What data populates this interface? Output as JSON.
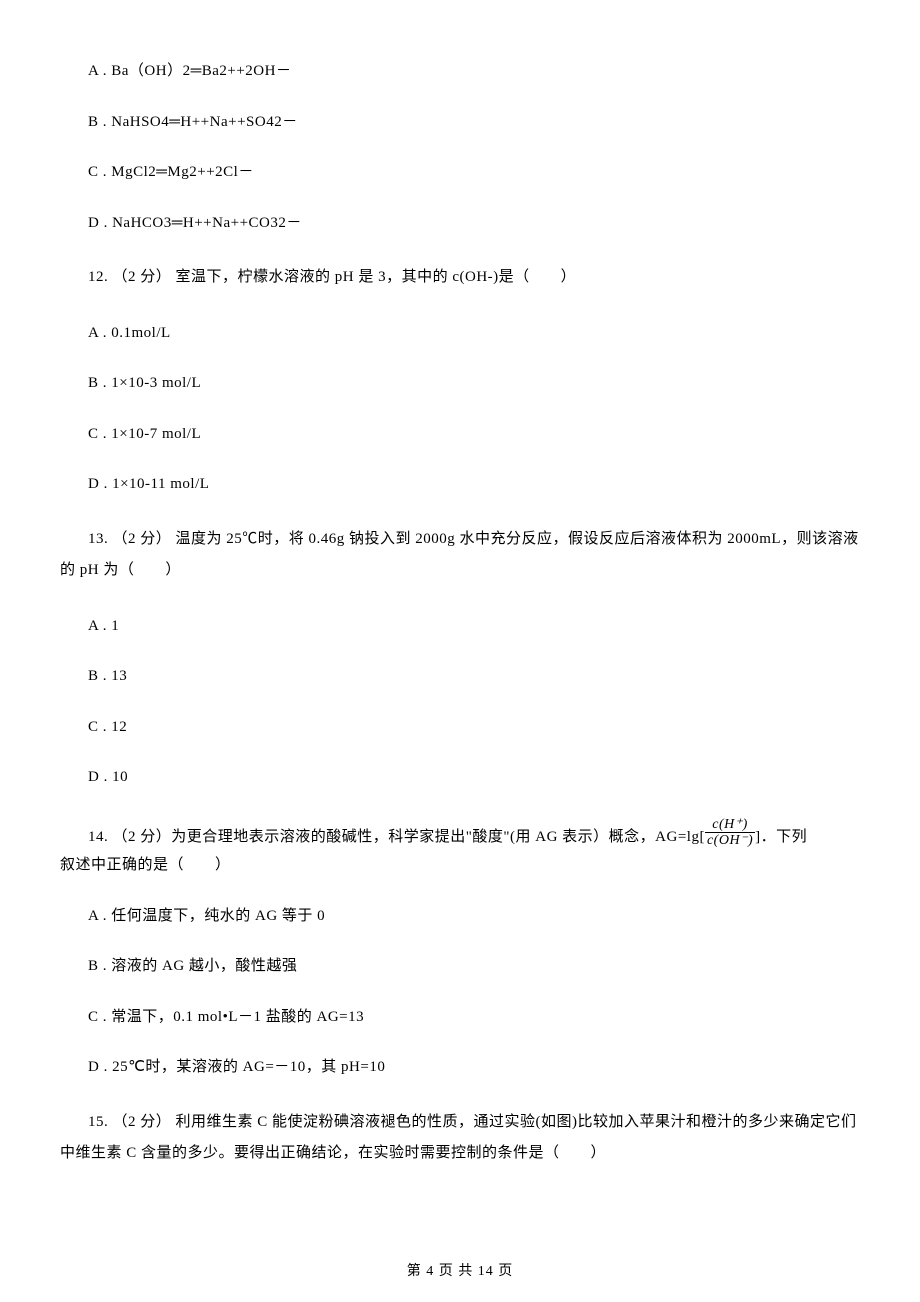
{
  "options_block1": {
    "a": "A . Ba（OH）2═Ba2++2OH－",
    "b": "B . NaHSO4═H++Na++SO42－",
    "c": "C . MgCl2═Mg2++2Cl－",
    "d": "D . NaHCO3═H++Na++CO32－"
  },
  "q12": {
    "text": "12. （2 分）  室温下，柠檬水溶液的 pH 是 3，其中的 c(OH-)是（　　）",
    "a": "A . 0.1mol/L",
    "b": "B . 1×10-3 mol/L",
    "c": "C . 1×10-7 mol/L",
    "d": "D . 1×10-11 mol/L"
  },
  "q13": {
    "text": "13. （2 分）  温度为 25℃时，将 0.46g 钠投入到 2000g 水中充分反应，假设反应后溶液体积为 2000mL，则该溶液的 pH 为（　　）",
    "a": "A . 1",
    "b": "B . 13",
    "c": "C . 12",
    "d": "D . 10"
  },
  "q14": {
    "text_before": "14. （2 分）为更合理地表示溶液的酸碱性，科学家提出\"酸度\"(用 AG 表示）概念，AG=lg[ ",
    "fraction_num": "c(H⁺)",
    "fraction_den": "c(OH⁻)",
    "text_after": " ]．下列",
    "text_line2": "叙述中正确的是（　　）",
    "a": "A . 任何温度下，纯水的 AG 等于 0",
    "b": "B . 溶液的 AG 越小，酸性越强",
    "c": "C . 常温下，0.1 mol•L－1 盐酸的 AG=13",
    "d": "D . 25℃时，某溶液的 AG=－10，其 pH=10"
  },
  "q15": {
    "text": "15. （2 分）  利用维生素 C 能使淀粉碘溶液褪色的性质，通过实验(如图)比较加入苹果汁和橙汁的多少来确定它们中维生素 C 含量的多少。要得出正确结论，在实验时需要控制的条件是（　　）"
  },
  "footer": {
    "text": "第 4 页 共 14 页"
  }
}
